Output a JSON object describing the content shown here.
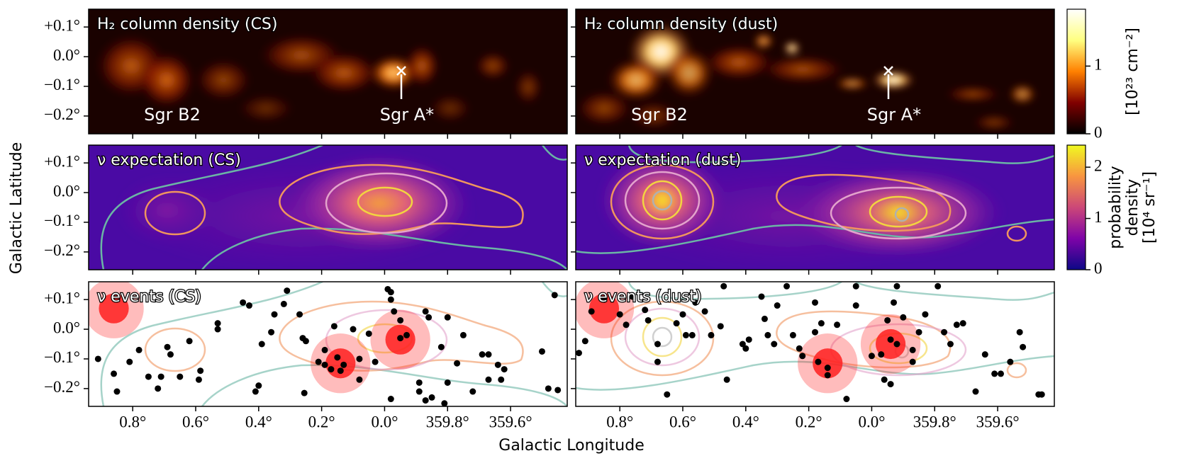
{
  "chart_data": {
    "type": "panels",
    "xlabel": "Galactic Longitude",
    "ylabel": "Galactic Latitude",
    "xlim": [
      0.94,
      359.42
    ],
    "xticks": [
      {
        "value": 0.8,
        "label": "0.8°"
      },
      {
        "value": 0.6,
        "label": "0.6°"
      },
      {
        "value": 0.4,
        "label": "0.4°"
      },
      {
        "value": 0.2,
        "label": "0.2°"
      },
      {
        "value": 0,
        "label": "0.0°"
      },
      {
        "value": 359.8,
        "label": "359.8°"
      },
      {
        "value": 359.6,
        "label": "359.6°"
      }
    ],
    "ylim": [
      -0.26,
      0.16
    ],
    "yticks": [
      {
        "value": 0.1,
        "label": "+0.1°"
      },
      {
        "value": 0,
        "label": "0.0°"
      },
      {
        "value": -0.1,
        "label": "−0.1°"
      },
      {
        "value": -0.2,
        "label": "−0.2°"
      }
    ],
    "panels": [
      {
        "type": "heatmap",
        "colormap": "afmhot",
        "title": "H₂ column density (CS)",
        "annotations": [
          "Sgr B2",
          "Sgr A*"
        ]
      },
      {
        "type": "heatmap",
        "colormap": "afmhot",
        "title": "H₂ column density (dust)",
        "annotations": [
          "Sgr B2",
          "Sgr A*"
        ]
      },
      {
        "type": "heatmap",
        "colormap": "plasma",
        "title": "ν expectation (CS)"
      },
      {
        "type": "heatmap",
        "colormap": "plasma",
        "title": "ν expectation (dust)"
      },
      {
        "type": "scatter",
        "title": "ν events (CS)",
        "color": "#000000",
        "x": [
          0.91,
          0.86,
          0.85,
          0.81,
          0.78,
          0.75,
          0.72,
          0.71,
          0.69,
          0.68,
          0.65,
          0.62,
          0.59,
          0.585,
          0.53,
          0.53,
          0.45,
          0.43,
          0.41,
          0.4,
          0.39,
          0.36,
          0.35,
          0.31,
          0.32,
          0.27,
          0.26,
          0.255,
          0.25,
          0.21,
          0.19,
          0.19,
          0.16,
          0.15,
          0.13,
          0.1,
          0.08,
          0.08,
          0.05,
          0.03,
          359.99,
          359.98,
          359.98,
          359.97,
          359.95,
          359.93,
          359.89,
          359.89,
          359.87,
          359.86,
          359.82,
          359.81,
          359.8,
          359.8,
          359.77,
          359.75,
          359.72,
          359.69,
          359.67,
          359.67,
          359.64,
          359.63,
          359.62,
          359.5,
          359.48,
          359.45,
          359.46,
          359.87,
          359.85,
          359.98,
          359.95,
          0.17,
          0.14
        ],
        "y": [
          -0.1,
          -0.15,
          -0.21,
          -0.11,
          -0.07,
          -0.16,
          -0.2,
          -0.16,
          -0.06,
          -0.085,
          -0.16,
          -0.04,
          -0.17,
          -0.14,
          0.02,
          0,
          0.09,
          0.08,
          -0.21,
          -0.19,
          -0.05,
          -0.01,
          0.05,
          0.13,
          0.085,
          0.05,
          -0.03,
          -0.215,
          -0.04,
          -0.11,
          -0.12,
          -0.07,
          0.01,
          -0.095,
          -0.12,
          0,
          -0.1,
          -0.17,
          -0.015,
          -0.11,
          0.135,
          0.125,
          0.1,
          0.06,
          0.03,
          -0.02,
          -0.18,
          -0.21,
          0.06,
          0.04,
          -0.06,
          -0.25,
          -0.18,
          0.04,
          -0.115,
          -0.02,
          -0.21,
          -0.085,
          -0.085,
          -0.17,
          -0.12,
          -0.17,
          -0.135,
          -0.075,
          -0.2,
          -0.205,
          0.115,
          -0.24,
          -0.23,
          -0.235,
          -0.03,
          -0.135,
          -0.14
        ],
        "events": {
          "color": "#ff2020",
          "x": [
            0.86,
            0.14,
            359.95
          ],
          "y": [
            0.07,
            -0.115,
            -0.035
          ],
          "radius": [
            0.095,
            0.095,
            0.095
          ]
        }
      },
      {
        "type": "scatter",
        "title": "ν events (dust)",
        "color": "#000000",
        "x": [
          0.93,
          0.91,
          0.89,
          0.85,
          0.8,
          0.78,
          0.76,
          0.72,
          0.71,
          0.68,
          0.68,
          0.65,
          0.62,
          0.6,
          0.59,
          0.57,
          0.56,
          0.53,
          0.51,
          0.48,
          0.47,
          0.46,
          0.41,
          0.4,
          0.39,
          0.35,
          0.34,
          0.33,
          0.31,
          0.3,
          0.27,
          0.25,
          0.23,
          0.22,
          0.18,
          0.18,
          0.16,
          0.14,
          0.11,
          0.08,
          0.05,
          0.05,
          0,
          359.97,
          359.95,
          359.93,
          359.92,
          359.9,
          359.87,
          359.87,
          359.85,
          359.83,
          359.79,
          359.77,
          359.75,
          359.73,
          359.71,
          359.67,
          359.64,
          359.61,
          359.59,
          359.56,
          359.53,
          359.52,
          359.47,
          359.46,
          359.94,
          359.92,
          359.96,
          359.94,
          0.17,
          0.14
        ],
        "y": [
          -0.08,
          -0.04,
          0.06,
          0.1,
          0.05,
          0.015,
          0.11,
          0.065,
          0.03,
          -0.05,
          -0.11,
          -0.22,
          0.02,
          0.05,
          -0.02,
          -0.02,
          0.09,
          0.06,
          -0.02,
          0.01,
          0.145,
          -0.17,
          -0.05,
          -0.065,
          -0.035,
          0.11,
          0.035,
          -0.02,
          -0.05,
          0.08,
          0.145,
          -0.02,
          -0.065,
          -0.09,
          0.09,
          -0.01,
          0.02,
          -0.155,
          0.015,
          -0.235,
          0.145,
          0.08,
          -0.09,
          -0.085,
          0.03,
          0.09,
          0.145,
          0.04,
          -0.07,
          -0.11,
          -0.01,
          0.05,
          0.145,
          -0.01,
          -0.05,
          0.015,
          0.02,
          -0.21,
          -0.085,
          -0.15,
          -0.15,
          -0.11,
          -0.01,
          -0.06,
          -0.22,
          -0.22,
          -0.035,
          -0.05,
          -0.17,
          -0.185,
          -0.11,
          -0.13
        ],
        "events": {
          "color": "#ff2020",
          "x": [
            0.85,
            0.14,
            359.94
          ],
          "y": [
            0.07,
            -0.115,
            -0.05
          ],
          "radius": [
            0.095,
            0.095,
            0.095
          ]
        }
      }
    ],
    "colorbars": [
      {
        "colormap": "afmhot",
        "label": [
          "[10²³ cm⁻²]"
        ],
        "ylim": [
          0,
          1.84
        ],
        "yticks": [
          0,
          1
        ]
      },
      {
        "colormap": "plasma",
        "label": [
          "probability",
          "density",
          "[10⁴ sr⁻¹]"
        ],
        "ylim": [
          0,
          2.43
        ],
        "yticks": [
          0,
          1,
          2
        ]
      }
    ]
  }
}
